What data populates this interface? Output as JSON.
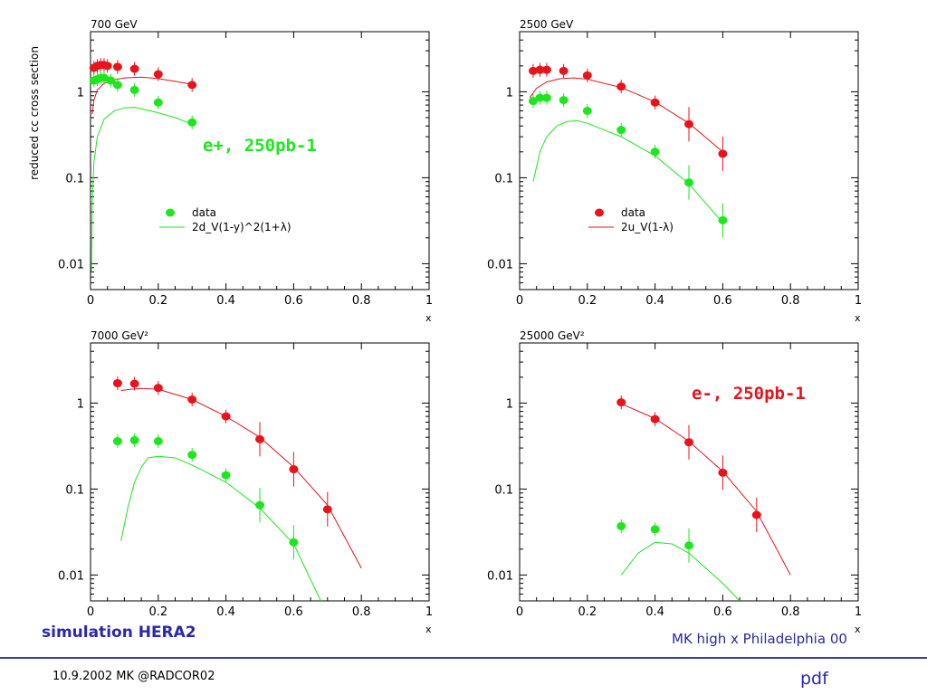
{
  "slide": {
    "footer_left": "10.9.2002 MK @RADCOR02",
    "footer_right": "pdf",
    "simulation_label": "simulation HERA2",
    "source_label": "MK high x Philadelphia 00",
    "annotation_eplus": "e+, 250pb-1",
    "annotation_eminus": "e-, 250pb-1",
    "colors": {
      "red": "#e8131b",
      "green": "#1ee61e",
      "navy": "#2929a8",
      "rule": "#3a3aa8"
    }
  },
  "chart_data": [
    {
      "type": "scatter",
      "panel_label": "700 GeV",
      "ylabel": "reduced cc cross section",
      "xlabel": "x",
      "xlim": [
        0,
        1
      ],
      "ylim": [
        0.005,
        5
      ],
      "yscale": "log",
      "xticks": [
        "0",
        "0.2",
        "0.4",
        "0.6",
        "0.8",
        "1"
      ],
      "yticks": [
        "0.01",
        "0.1",
        "1"
      ],
      "legend": {
        "marker_label": "data",
        "line_label": "2d_V(1-y)^2(1+λ)",
        "color": "green"
      },
      "series": [
        {
          "color": "red",
          "points": [
            [
              0.01,
              1.9
            ],
            [
              0.02,
              2.0
            ],
            [
              0.03,
              2.05
            ],
            [
              0.04,
              2.05
            ],
            [
              0.05,
              2.0
            ],
            [
              0.08,
              1.95
            ],
            [
              0.13,
              1.85
            ],
            [
              0.2,
              1.6
            ],
            [
              0.3,
              1.2
            ]
          ]
        },
        {
          "color": "green",
          "points": [
            [
              0.01,
              1.35
            ],
            [
              0.02,
              1.4
            ],
            [
              0.03,
              1.45
            ],
            [
              0.04,
              1.45
            ],
            [
              0.06,
              1.35
            ],
            [
              0.08,
              1.2
            ],
            [
              0.13,
              1.05
            ],
            [
              0.2,
              0.75
            ],
            [
              0.3,
              0.44
            ]
          ]
        }
      ],
      "curves": [
        {
          "color": "red",
          "points": [
            [
              0.005,
              0.55
            ],
            [
              0.01,
              0.8
            ],
            [
              0.02,
              1.05
            ],
            [
              0.04,
              1.25
            ],
            [
              0.07,
              1.38
            ],
            [
              0.1,
              1.45
            ],
            [
              0.15,
              1.48
            ],
            [
              0.2,
              1.42
            ],
            [
              0.25,
              1.32
            ],
            [
              0.3,
              1.22
            ]
          ]
        },
        {
          "color": "green",
          "points": [
            [
              0.003,
              0.008
            ],
            [
              0.005,
              0.05
            ],
            [
              0.01,
              0.15
            ],
            [
              0.02,
              0.3
            ],
            [
              0.04,
              0.48
            ],
            [
              0.07,
              0.6
            ],
            [
              0.1,
              0.65
            ],
            [
              0.13,
              0.66
            ],
            [
              0.16,
              0.62
            ],
            [
              0.2,
              0.57
            ],
            [
              0.25,
              0.5
            ],
            [
              0.3,
              0.42
            ]
          ]
        }
      ]
    },
    {
      "type": "scatter",
      "panel_label": "2500 GeV",
      "xlabel": "x",
      "xlim": [
        0,
        1
      ],
      "ylim": [
        0.005,
        5
      ],
      "yscale": "log",
      "xticks": [
        "0",
        "0.2",
        "0.4",
        "0.6",
        "0.8",
        "1"
      ],
      "yticks": [
        "0.01",
        "0.1",
        "1"
      ],
      "legend": {
        "marker_label": "data",
        "line_label": "2u_V(1-λ)",
        "color": "red"
      },
      "series": [
        {
          "color": "red",
          "points": [
            [
              0.04,
              1.75
            ],
            [
              0.06,
              1.8
            ],
            [
              0.08,
              1.8
            ],
            [
              0.13,
              1.75
            ],
            [
              0.2,
              1.55
            ],
            [
              0.3,
              1.15
            ],
            [
              0.4,
              0.75
            ],
            [
              0.5,
              0.42
            ],
            [
              0.6,
              0.19
            ]
          ]
        },
        {
          "color": "green",
          "points": [
            [
              0.04,
              0.78
            ],
            [
              0.06,
              0.85
            ],
            [
              0.08,
              0.85
            ],
            [
              0.13,
              0.8
            ],
            [
              0.2,
              0.6
            ],
            [
              0.3,
              0.36
            ],
            [
              0.4,
              0.2
            ],
            [
              0.5,
              0.088
            ],
            [
              0.6,
              0.032
            ]
          ]
        }
      ],
      "curves": [
        {
          "color": "red",
          "points": [
            [
              0.03,
              0.85
            ],
            [
              0.05,
              1.1
            ],
            [
              0.08,
              1.3
            ],
            [
              0.12,
              1.42
            ],
            [
              0.16,
              1.45
            ],
            [
              0.2,
              1.4
            ],
            [
              0.3,
              1.12
            ],
            [
              0.4,
              0.76
            ],
            [
              0.5,
              0.43
            ],
            [
              0.6,
              0.2
            ]
          ]
        },
        {
          "color": "green",
          "points": [
            [
              0.04,
              0.09
            ],
            [
              0.06,
              0.2
            ],
            [
              0.08,
              0.3
            ],
            [
              0.11,
              0.4
            ],
            [
              0.14,
              0.45
            ],
            [
              0.17,
              0.46
            ],
            [
              0.2,
              0.43
            ],
            [
              0.3,
              0.3
            ],
            [
              0.4,
              0.18
            ],
            [
              0.5,
              0.085
            ],
            [
              0.6,
              0.03
            ]
          ]
        }
      ]
    },
    {
      "type": "scatter",
      "panel_label": "7000 GeV²",
      "xlabel": "x",
      "xlim": [
        0,
        1
      ],
      "ylim": [
        0.005,
        5
      ],
      "yscale": "log",
      "xticks": [
        "0",
        "0.2",
        "0.4",
        "0.6",
        "0.8",
        "1"
      ],
      "yticks": [
        "0.01",
        "0.1",
        "1"
      ],
      "series": [
        {
          "color": "red",
          "points": [
            [
              0.08,
              1.7
            ],
            [
              0.13,
              1.68
            ],
            [
              0.2,
              1.5
            ],
            [
              0.3,
              1.1
            ],
            [
              0.4,
              0.7
            ],
            [
              0.5,
              0.38
            ],
            [
              0.6,
              0.17
            ],
            [
              0.7,
              0.058
            ]
          ]
        },
        {
          "color": "green",
          "points": [
            [
              0.08,
              0.36
            ],
            [
              0.13,
              0.37
            ],
            [
              0.2,
              0.36
            ],
            [
              0.3,
              0.25
            ],
            [
              0.4,
              0.145
            ],
            [
              0.5,
              0.065
            ],
            [
              0.6,
              0.024
            ]
          ]
        }
      ],
      "curves": [
        {
          "color": "red",
          "points": [
            [
              0.09,
              1.4
            ],
            [
              0.12,
              1.45
            ],
            [
              0.15,
              1.48
            ],
            [
              0.2,
              1.45
            ],
            [
              0.3,
              1.1
            ],
            [
              0.4,
              0.7
            ],
            [
              0.5,
              0.4
            ],
            [
              0.6,
              0.18
            ],
            [
              0.7,
              0.065
            ],
            [
              0.8,
              0.012
            ]
          ]
        },
        {
          "color": "green",
          "points": [
            [
              0.09,
              0.025
            ],
            [
              0.11,
              0.06
            ],
            [
              0.13,
              0.12
            ],
            [
              0.15,
              0.18
            ],
            [
              0.17,
              0.23
            ],
            [
              0.2,
              0.24
            ],
            [
              0.25,
              0.23
            ],
            [
              0.3,
              0.19
            ],
            [
              0.4,
              0.12
            ],
            [
              0.5,
              0.06
            ],
            [
              0.6,
              0.023
            ],
            [
              0.68,
              0.005
            ]
          ]
        }
      ]
    },
    {
      "type": "scatter",
      "panel_label": "25000 GeV²",
      "xlabel": "x",
      "xlim": [
        0,
        1
      ],
      "ylim": [
        0.005,
        5
      ],
      "yscale": "log",
      "xticks": [
        "0",
        "0.2",
        "0.4",
        "0.6",
        "0.8",
        "1"
      ],
      "yticks": [
        "0.01",
        "0.1",
        "1"
      ],
      "series": [
        {
          "color": "red",
          "points": [
            [
              0.3,
              1.02
            ],
            [
              0.4,
              0.65
            ],
            [
              0.5,
              0.35
            ],
            [
              0.6,
              0.155
            ],
            [
              0.7,
              0.05
            ]
          ]
        },
        {
          "color": "green",
          "points": [
            [
              0.3,
              0.037
            ],
            [
              0.4,
              0.034
            ],
            [
              0.5,
              0.022
            ]
          ]
        }
      ],
      "curves": [
        {
          "color": "red",
          "points": [
            [
              0.3,
              0.98
            ],
            [
              0.4,
              0.66
            ],
            [
              0.5,
              0.36
            ],
            [
              0.6,
              0.16
            ],
            [
              0.7,
              0.055
            ],
            [
              0.8,
              0.01
            ]
          ]
        },
        {
          "color": "green",
          "points": [
            [
              0.3,
              0.01
            ],
            [
              0.35,
              0.018
            ],
            [
              0.4,
              0.024
            ],
            [
              0.45,
              0.023
            ],
            [
              0.5,
              0.018
            ],
            [
              0.55,
              0.012
            ],
            [
              0.6,
              0.008
            ],
            [
              0.65,
              0.005
            ]
          ]
        }
      ]
    }
  ]
}
